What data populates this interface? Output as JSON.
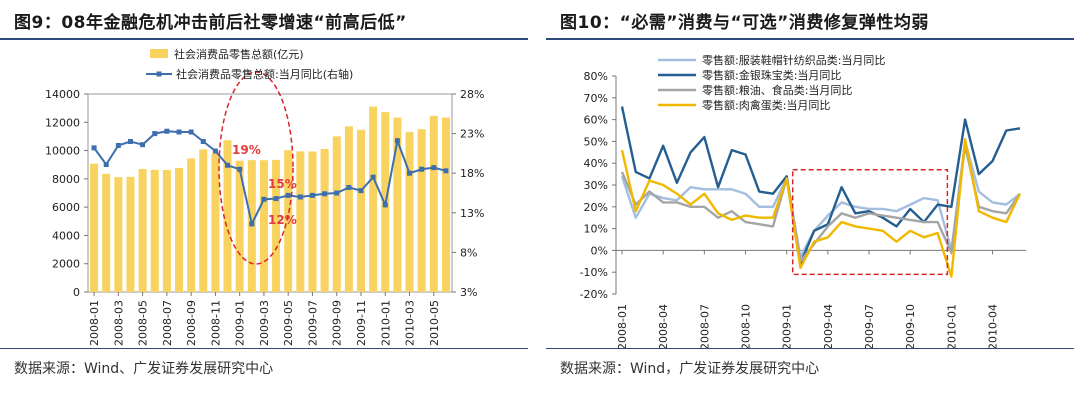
{
  "left": {
    "title": "图9：08年金融危机冲击前后社零增速“前高后低”",
    "source": "数据来源：Wind、广发证券发展研究中心",
    "chart_data": {
      "type": "bar",
      "categories": [
        "2008-01",
        "2008-02",
        "2008-03",
        "2008-04",
        "2008-05",
        "2008-06",
        "2008-07",
        "2008-08",
        "2008-09",
        "2008-10",
        "2008-11",
        "2008-12",
        "2009-01",
        "2009-02",
        "2009-03",
        "2009-04",
        "2009-05",
        "2009-06",
        "2009-07",
        "2009-08",
        "2009-09",
        "2009-10",
        "2009-11",
        "2009-12",
        "2010-01",
        "2010-02",
        "2010-03",
        "2010-04",
        "2010-05",
        "2010-06"
      ],
      "tick_labels": [
        "2008-01",
        "2008-03",
        "2008-05",
        "2008-07",
        "2008-09",
        "2008-11",
        "2009-01",
        "2009-03",
        "2009-05",
        "2009-07",
        "2009-09",
        "2009-11",
        "2010-01",
        "2010-03",
        "2010-05"
      ],
      "bar_series": {
        "name": "社会消费品零售总额(亿元)",
        "color": "#f9d35f",
        "values": [
          9077,
          8355,
          8123,
          8142,
          8703,
          8642,
          8629,
          8768,
          9447,
          10083,
          9791,
          10729,
          9287,
          9324,
          9318,
          9343,
          10028,
          9942,
          9937,
          10116,
          11009,
          11719,
          11472,
          13111,
          12719,
          12335,
          11322,
          11510,
          12455,
          12333
        ]
      },
      "line_series": {
        "name": "社会消费品零售总额:当月同比(右轴)",
        "color": "#3d6fae",
        "values": [
          21.2,
          19.1,
          21.5,
          22.0,
          21.6,
          23.0,
          23.3,
          23.2,
          23.2,
          22.0,
          20.8,
          19.0,
          18.5,
          11.6,
          14.7,
          14.8,
          15.2,
          15.0,
          15.2,
          15.4,
          15.5,
          16.2,
          15.8,
          17.5,
          14.0,
          22.1,
          18.0,
          18.5,
          18.7,
          18.3
        ]
      },
      "y_left": {
        "min": 0,
        "max": 14000,
        "ticks": [
          "0",
          "2000",
          "4000",
          "6000",
          "8000",
          "10000",
          "12000",
          "14000"
        ]
      },
      "y_right": {
        "min": 3,
        "max": 28,
        "ticks": [
          "3%",
          "8%",
          "13%",
          "18%",
          "23%",
          "28%"
        ]
      },
      "annotations": [
        "19%",
        "15%",
        "12%"
      ],
      "legend_position": "top-left"
    }
  },
  "right": {
    "title": "图10：“必需”消费与“可选”消费修复弹性均弱",
    "source": "数据来源：Wind，广发证券发展研究中心",
    "chart_data": {
      "type": "line",
      "categories": [
        "2008-01",
        "2008-02",
        "2008-03",
        "2008-04",
        "2008-05",
        "2008-06",
        "2008-07",
        "2008-08",
        "2008-09",
        "2008-10",
        "2008-11",
        "2008-12",
        "2009-01",
        "2009-02",
        "2009-03",
        "2009-04",
        "2009-05",
        "2009-06",
        "2009-07",
        "2009-08",
        "2009-09",
        "2009-10",
        "2009-11",
        "2009-12",
        "2010-01",
        "2010-02",
        "2010-03",
        "2010-04",
        "2010-05",
        "2010-06"
      ],
      "tick_labels": [
        "2008-01",
        "2008-04",
        "2008-07",
        "2008-10",
        "2009-01",
        "2009-04",
        "2009-07",
        "2009-10",
        "2010-01",
        "2010-04"
      ],
      "series": [
        {
          "name": "零售额:服装鞋帽针纺织品类:当月同比",
          "color": "#a3bede",
          "values": [
            34,
            15,
            26,
            24,
            23,
            29,
            28,
            28,
            28,
            26,
            20,
            20,
            33,
            -3,
            9,
            16,
            22,
            20,
            19,
            19,
            18,
            21,
            24,
            23,
            0,
            50,
            27,
            22,
            21,
            26
          ]
        },
        {
          "name": "零售额:金银珠宝类:当月同比",
          "color": "#255e91",
          "values": [
            66,
            36,
            33,
            48,
            31,
            45,
            52,
            29,
            46,
            44,
            27,
            26,
            34,
            -6,
            9,
            12,
            29,
            17,
            18,
            15,
            11,
            19,
            13,
            21,
            20,
            60,
            35,
            41,
            55,
            56
          ]
        },
        {
          "name": "零售额:粮油、食品类:当月同比",
          "color": "#a5a5a5",
          "values": [
            36,
            21,
            27,
            22,
            22,
            20,
            20,
            15,
            18,
            13,
            12,
            11,
            33,
            -5,
            3,
            11,
            17,
            15,
            17,
            16,
            15,
            14,
            13,
            13,
            -1,
            48,
            20,
            18,
            17,
            26
          ]
        },
        {
          "name": "零售额:肉禽蛋类:当月同比",
          "color": "#f2b800",
          "values": [
            46,
            18,
            32,
            30,
            26,
            21,
            26,
            17,
            14,
            16,
            15,
            15,
            33,
            -8,
            4,
            6,
            13,
            11,
            10,
            9,
            4,
            9,
            6,
            8,
            -12,
            51,
            18,
            15,
            13,
            26
          ]
        }
      ],
      "y": {
        "min": -20,
        "max": 80,
        "ticks": [
          "-20%",
          "-10%",
          "0%",
          "10%",
          "20%",
          "30%",
          "40%",
          "50%",
          "60%",
          "70%",
          "80%"
        ]
      },
      "legend_position": "top-left"
    }
  }
}
